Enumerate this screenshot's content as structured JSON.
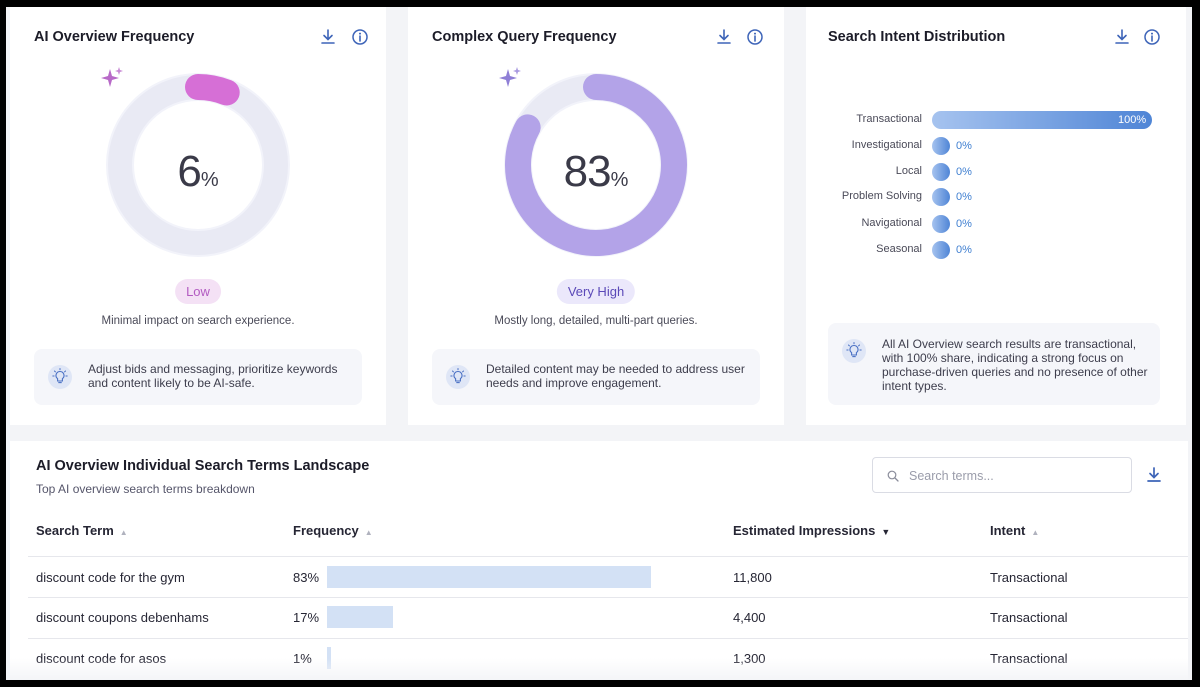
{
  "cards": [
    {
      "title": "AI Overview Frequency",
      "value": "6",
      "unit": "%",
      "fraction": 0.06,
      "level": "Low",
      "caption": "Minimal impact on search experience.",
      "tip": "Adjust bids and messaging, prioritize keywords and content likely to be AI-safe."
    },
    {
      "title": "Complex Query Frequency",
      "value": "83",
      "unit": "%",
      "fraction": 0.83,
      "level": "Very High",
      "caption": "Mostly long, detailed, multi-part queries.",
      "tip": "Detailed content may be needed to address user needs and improve engagement."
    }
  ],
  "intent": {
    "title": "Search Intent Distribution",
    "rows": [
      {
        "label": "Transactional",
        "value": "100%",
        "fraction": 1.0
      },
      {
        "label": "Investigational",
        "value": "0%",
        "fraction": 0
      },
      {
        "label": "Local",
        "value": "0%",
        "fraction": 0
      },
      {
        "label": "Problem Solving",
        "value": "0%",
        "fraction": 0
      },
      {
        "label": "Navigational",
        "value": "0%",
        "fraction": 0
      },
      {
        "label": "Seasonal",
        "value": "0%",
        "fraction": 0
      }
    ],
    "tip": "All AI Overview search results are transactional, with 100% share, indicating a strong focus on purchase-driven queries and no presence of other intent types."
  },
  "landscape": {
    "title": "AI Overview Individual Search Terms Landscape",
    "subtitle": "Top AI overview search terms breakdown",
    "search_placeholder": "Search terms...",
    "columns": [
      "Search Term",
      "Frequency",
      "Estimated Impressions",
      "Intent"
    ],
    "rows": [
      {
        "term": "discount code for the gym",
        "frequency": "83%",
        "fraction": 0.83,
        "impressions": "11,800",
        "intent": "Transactional"
      },
      {
        "term": "discount coupons debenhams",
        "frequency": "17%",
        "fraction": 0.17,
        "impressions": "4,400",
        "intent": "Transactional"
      },
      {
        "term": "discount code for asos",
        "frequency": "1%",
        "fraction": 0.01,
        "impressions": "1,300",
        "intent": "Transactional"
      }
    ]
  },
  "colors": {
    "low_pill_bg": "#f4e1f5",
    "low_pill_text": "#b35bc2",
    "high_pill_bg": "#ebe8fb",
    "high_pill_text": "#5b49b8",
    "ai_arc": "#d66fd6",
    "complex_arc": "#b3a3e8",
    "bar_blue": "#4f85d6",
    "freq_bar": "#d3e1f5"
  }
}
